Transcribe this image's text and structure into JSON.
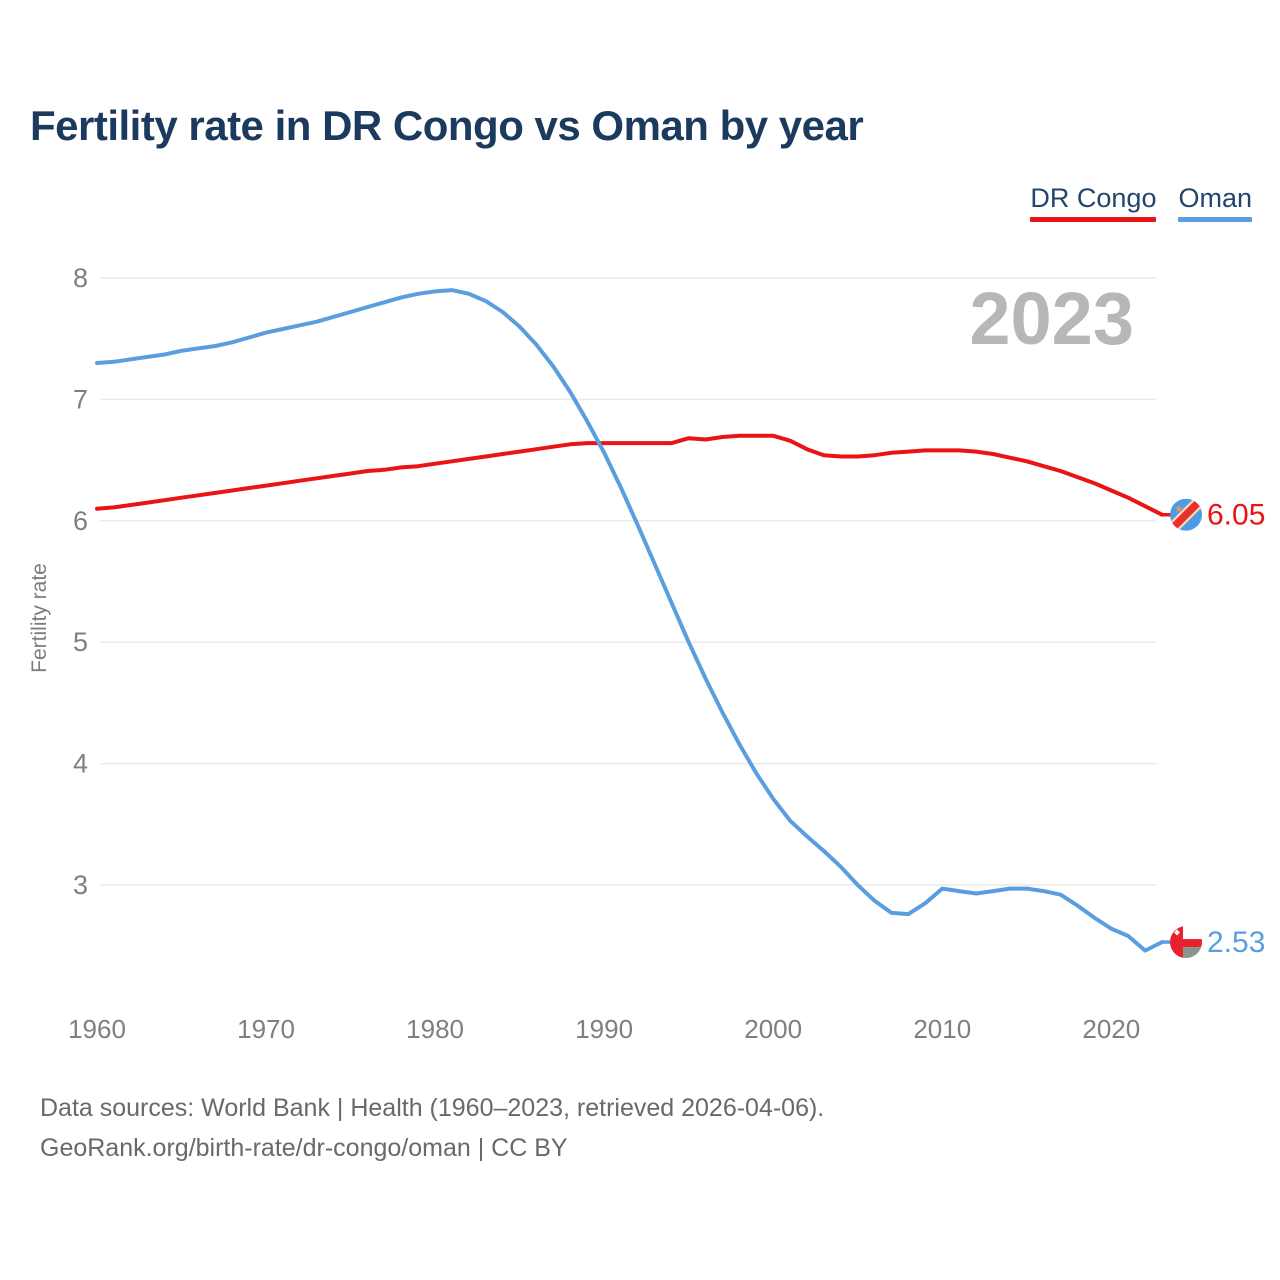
{
  "watermark": {
    "year": "2023"
  },
  "chart_data": {
    "type": "line",
    "title": "Fertility rate in DR Congo vs Oman by year",
    "xlabel": "",
    "ylabel": "Fertility rate",
    "x_start": 1960,
    "x_end": 2023,
    "ylim": [
      2.3,
      8.2
    ],
    "yticks": [
      8,
      7,
      6,
      5,
      4,
      3
    ],
    "xticks": [
      1960,
      1970,
      1980,
      1990,
      2000,
      2010,
      2020
    ],
    "grid": "horizontal",
    "legend_position": "top-right",
    "series": [
      {
        "name": "DR Congo",
        "color": "#ea1414",
        "end_label": "6.05",
        "flag": "dr-congo",
        "flag_colors": {
          "circle": "#4f9be3",
          "stripe": "#e93030",
          "fimbriation": "#f9d9ac",
          "star": "#f0925f"
        },
        "values": [
          6.1,
          6.11,
          6.13,
          6.15,
          6.17,
          6.19,
          6.21,
          6.23,
          6.25,
          6.27,
          6.29,
          6.31,
          6.33,
          6.35,
          6.37,
          6.39,
          6.41,
          6.42,
          6.44,
          6.45,
          6.47,
          6.49,
          6.51,
          6.53,
          6.55,
          6.57,
          6.59,
          6.61,
          6.63,
          6.64,
          6.64,
          6.64,
          6.64,
          6.64,
          6.64,
          6.68,
          6.67,
          6.69,
          6.7,
          6.7,
          6.7,
          6.66,
          6.59,
          6.54,
          6.53,
          6.53,
          6.54,
          6.56,
          6.57,
          6.58,
          6.58,
          6.58,
          6.57,
          6.55,
          6.52,
          6.49,
          6.45,
          6.41,
          6.36,
          6.31,
          6.25,
          6.19,
          6.12,
          6.05
        ]
      },
      {
        "name": "Oman",
        "color": "#5b9ee0",
        "end_label": "2.53",
        "flag": "oman",
        "flag_colors": {
          "band": "#e8212c",
          "white": "#ffffff",
          "bottom": "#8a938c"
        },
        "values": [
          7.3,
          7.31,
          7.33,
          7.35,
          7.37,
          7.4,
          7.42,
          7.44,
          7.47,
          7.51,
          7.55,
          7.58,
          7.61,
          7.64,
          7.68,
          7.72,
          7.76,
          7.8,
          7.84,
          7.87,
          7.89,
          7.9,
          7.87,
          7.81,
          7.72,
          7.6,
          7.45,
          7.27,
          7.06,
          6.82,
          6.56,
          6.27,
          5.96,
          5.64,
          5.32,
          5.0,
          4.7,
          4.42,
          4.16,
          3.92,
          3.71,
          3.53,
          3.4,
          3.28,
          3.15,
          3.0,
          2.87,
          2.77,
          2.76,
          2.85,
          2.97,
          2.95,
          2.93,
          2.95,
          2.97,
          2.97,
          2.95,
          2.92,
          2.83,
          2.73,
          2.64,
          2.58,
          2.46,
          2.53
        ]
      }
    ]
  },
  "footer": {
    "line1": "Data sources: World Bank | Health (1960–2023, retrieved 2026-04-06).",
    "line2": "GeoRank.org/birth-rate/dr-congo/oman | CC BY"
  },
  "colors": {
    "title": "#1c3a5e",
    "tick_text": "#7f7f7f",
    "gridline": "#eaeaea",
    "watermark": "#b7b7b7",
    "footer_text": "#696969"
  }
}
